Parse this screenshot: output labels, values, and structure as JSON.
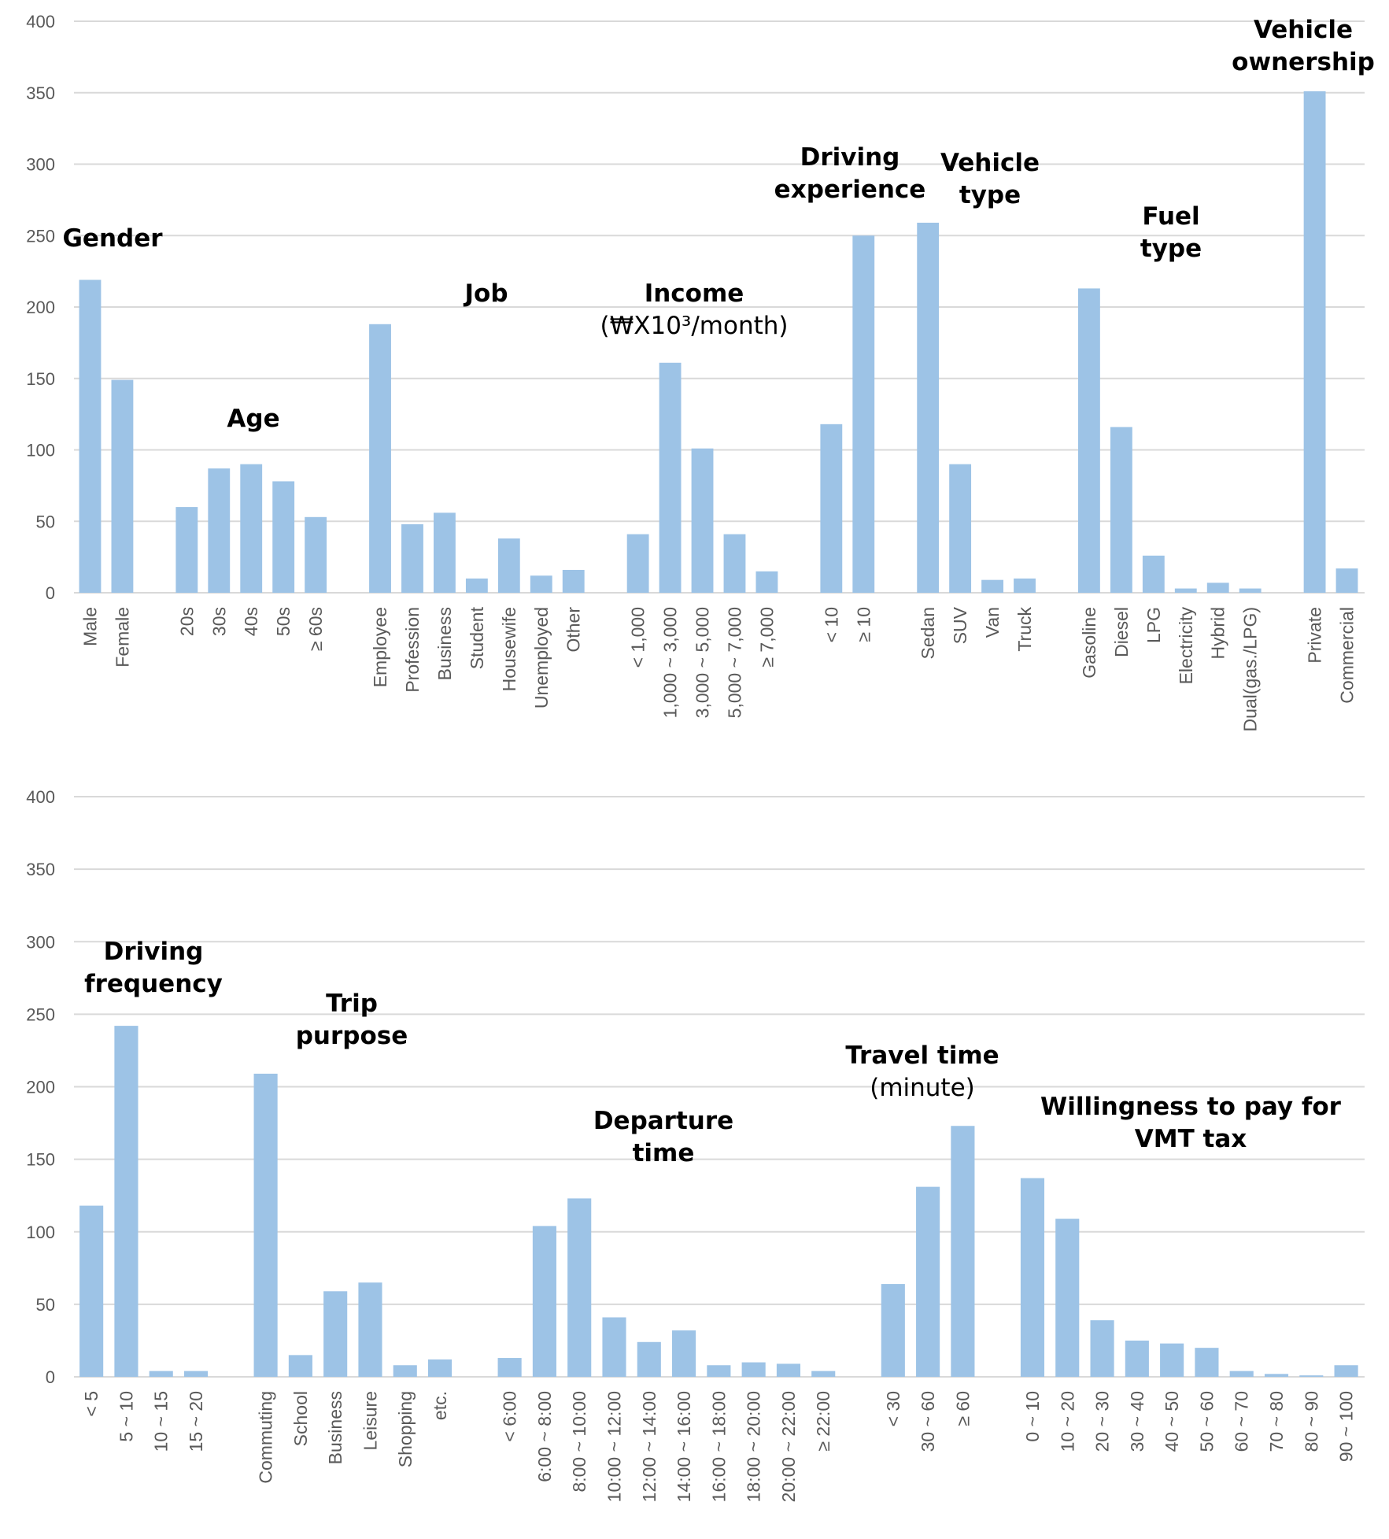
{
  "colors": {
    "bar": "#9dc3e6",
    "grid": "#d9d9d9",
    "tick_text": "#595959",
    "title_text": "#000000"
  },
  "chart_data": [
    {
      "type": "bar",
      "ylim": [
        0,
        400
      ],
      "yticks": [
        0,
        50,
        100,
        150,
        200,
        250,
        300,
        350,
        400
      ],
      "grid": true,
      "groups": [
        {
          "title": [
            "Gender"
          ],
          "categories": [
            "Male",
            "Female"
          ],
          "values": [
            219,
            149
          ]
        },
        {
          "title": [
            "Age"
          ],
          "categories": [
            "20s",
            "30s",
            "40s",
            "50s",
            "≥ 60s"
          ],
          "values": [
            60,
            87,
            90,
            78,
            53
          ]
        },
        {
          "title": [
            "Job"
          ],
          "categories": [
            "Employee",
            "Profession",
            "Business",
            "Student",
            "Housewife",
            "Unemployed",
            "Other"
          ],
          "values": [
            188,
            48,
            56,
            10,
            38,
            12,
            16
          ]
        },
        {
          "title": [
            "Income"
          ],
          "subtitle": "(₩X10³/month)",
          "categories": [
            "< 1,000",
            "1,000 ~ 3,000",
            "3,000 ~ 5,000",
            "5,000 ~ 7,000",
            "≥ 7,000"
          ],
          "values": [
            41,
            161,
            101,
            41,
            15
          ]
        },
        {
          "title": [
            "Driving",
            "experience"
          ],
          "categories": [
            "< 10",
            "≥ 10"
          ],
          "values": [
            118,
            250
          ]
        },
        {
          "title": [
            "Vehicle",
            "type"
          ],
          "categories": [
            "Sedan",
            "SUV",
            "Van",
            "Truck"
          ],
          "values": [
            259,
            90,
            9,
            10
          ]
        },
        {
          "title": [
            "Fuel",
            "type"
          ],
          "categories": [
            "Gasoline",
            "Diesel",
            "LPG",
            "Electricity",
            "Hybrid",
            "Dual(gas./LPG)"
          ],
          "values": [
            213,
            116,
            26,
            3,
            7,
            3
          ]
        },
        {
          "title": [
            "Vehicle",
            "ownership"
          ],
          "categories": [
            "Private",
            "Commercial"
          ],
          "values": [
            351,
            17
          ]
        }
      ]
    },
    {
      "type": "bar",
      "ylim": [
        0,
        400
      ],
      "yticks": [
        0,
        50,
        100,
        150,
        200,
        250,
        300,
        350,
        400
      ],
      "grid": true,
      "groups": [
        {
          "title": [
            "Driving",
            "frequency"
          ],
          "categories": [
            "< 5",
            "5 ~ 10",
            "10 ~ 15",
            "15 ~ 20"
          ],
          "values": [
            118,
            242,
            4,
            4
          ]
        },
        {
          "title": [
            "Trip",
            "purpose"
          ],
          "categories": [
            "Commuting",
            "School",
            "Business",
            "Leisure",
            "Shopping",
            "etc."
          ],
          "values": [
            209,
            15,
            59,
            65,
            8,
            12
          ]
        },
        {
          "title": [
            "Departure",
            "time"
          ],
          "categories": [
            "< 6:00",
            "6:00 ~ 8:00",
            "8:00 ~ 10:00",
            "10:00 ~ 12:00",
            "12:00 ~ 14:00",
            "14:00 ~ 16:00",
            "16:00 ~ 18:00",
            "18:00 ~ 20:00",
            "20:00 ~ 22:00",
            "≥ 22:00"
          ],
          "values": [
            13,
            104,
            123,
            41,
            24,
            32,
            8,
            10,
            9,
            4
          ]
        },
        {
          "title": [
            "Travel time"
          ],
          "subtitle": "(minute)",
          "categories": [
            "< 30",
            "30 ~ 60",
            "≥ 60"
          ],
          "values": [
            64,
            131,
            173
          ]
        },
        {
          "title": [
            "Willingness to pay for",
            "VMT tax"
          ],
          "categories": [
            "0 ~ 10",
            "10 ~ 20",
            "20 ~ 30",
            "30 ~ 40",
            "40 ~ 50",
            "50 ~ 60",
            "60 ~ 70",
            "70 ~ 80",
            "80 ~ 90",
            "90 ~ 100"
          ],
          "values": [
            137,
            109,
            39,
            25,
            23,
            20,
            4,
            2,
            1,
            8
          ]
        }
      ]
    }
  ]
}
